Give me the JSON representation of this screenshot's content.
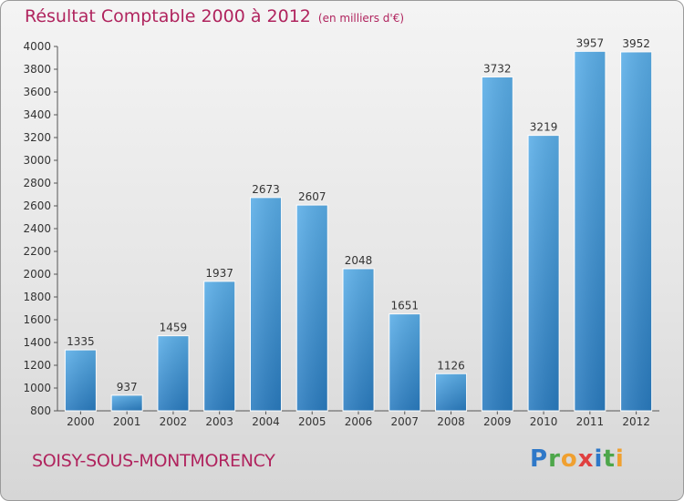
{
  "header": {
    "title": "Résultat Comptable 2000 à 2012",
    "subtitle": "(en milliers d'€)"
  },
  "footer": {
    "city": "SOISY-SOUS-MONTMORENCY",
    "logo": "Proxiti"
  },
  "colors": {
    "accent": "#b0245e",
    "bar_light": "#5aaee8",
    "bar_dark": "#2a7cc0"
  },
  "chart_data": {
    "type": "bar",
    "title": "Résultat Comptable 2000 à 2012",
    "subtitle": "(en milliers d'€)",
    "categories": [
      "2000",
      "2001",
      "2002",
      "2003",
      "2004",
      "2005",
      "2006",
      "2007",
      "2008",
      "2009",
      "2010",
      "2011",
      "2012"
    ],
    "values": [
      1335,
      937,
      1459,
      1937,
      2673,
      2607,
      2048,
      1651,
      1126,
      3732,
      3219,
      3957,
      3952
    ],
    "ylim": [
      800,
      4000
    ],
    "yticks": [
      800,
      1000,
      1200,
      1400,
      1600,
      1800,
      2000,
      2200,
      2400,
      2600,
      2800,
      3000,
      3200,
      3400,
      3600,
      3800,
      4000
    ],
    "grid": false,
    "legend": "none"
  }
}
